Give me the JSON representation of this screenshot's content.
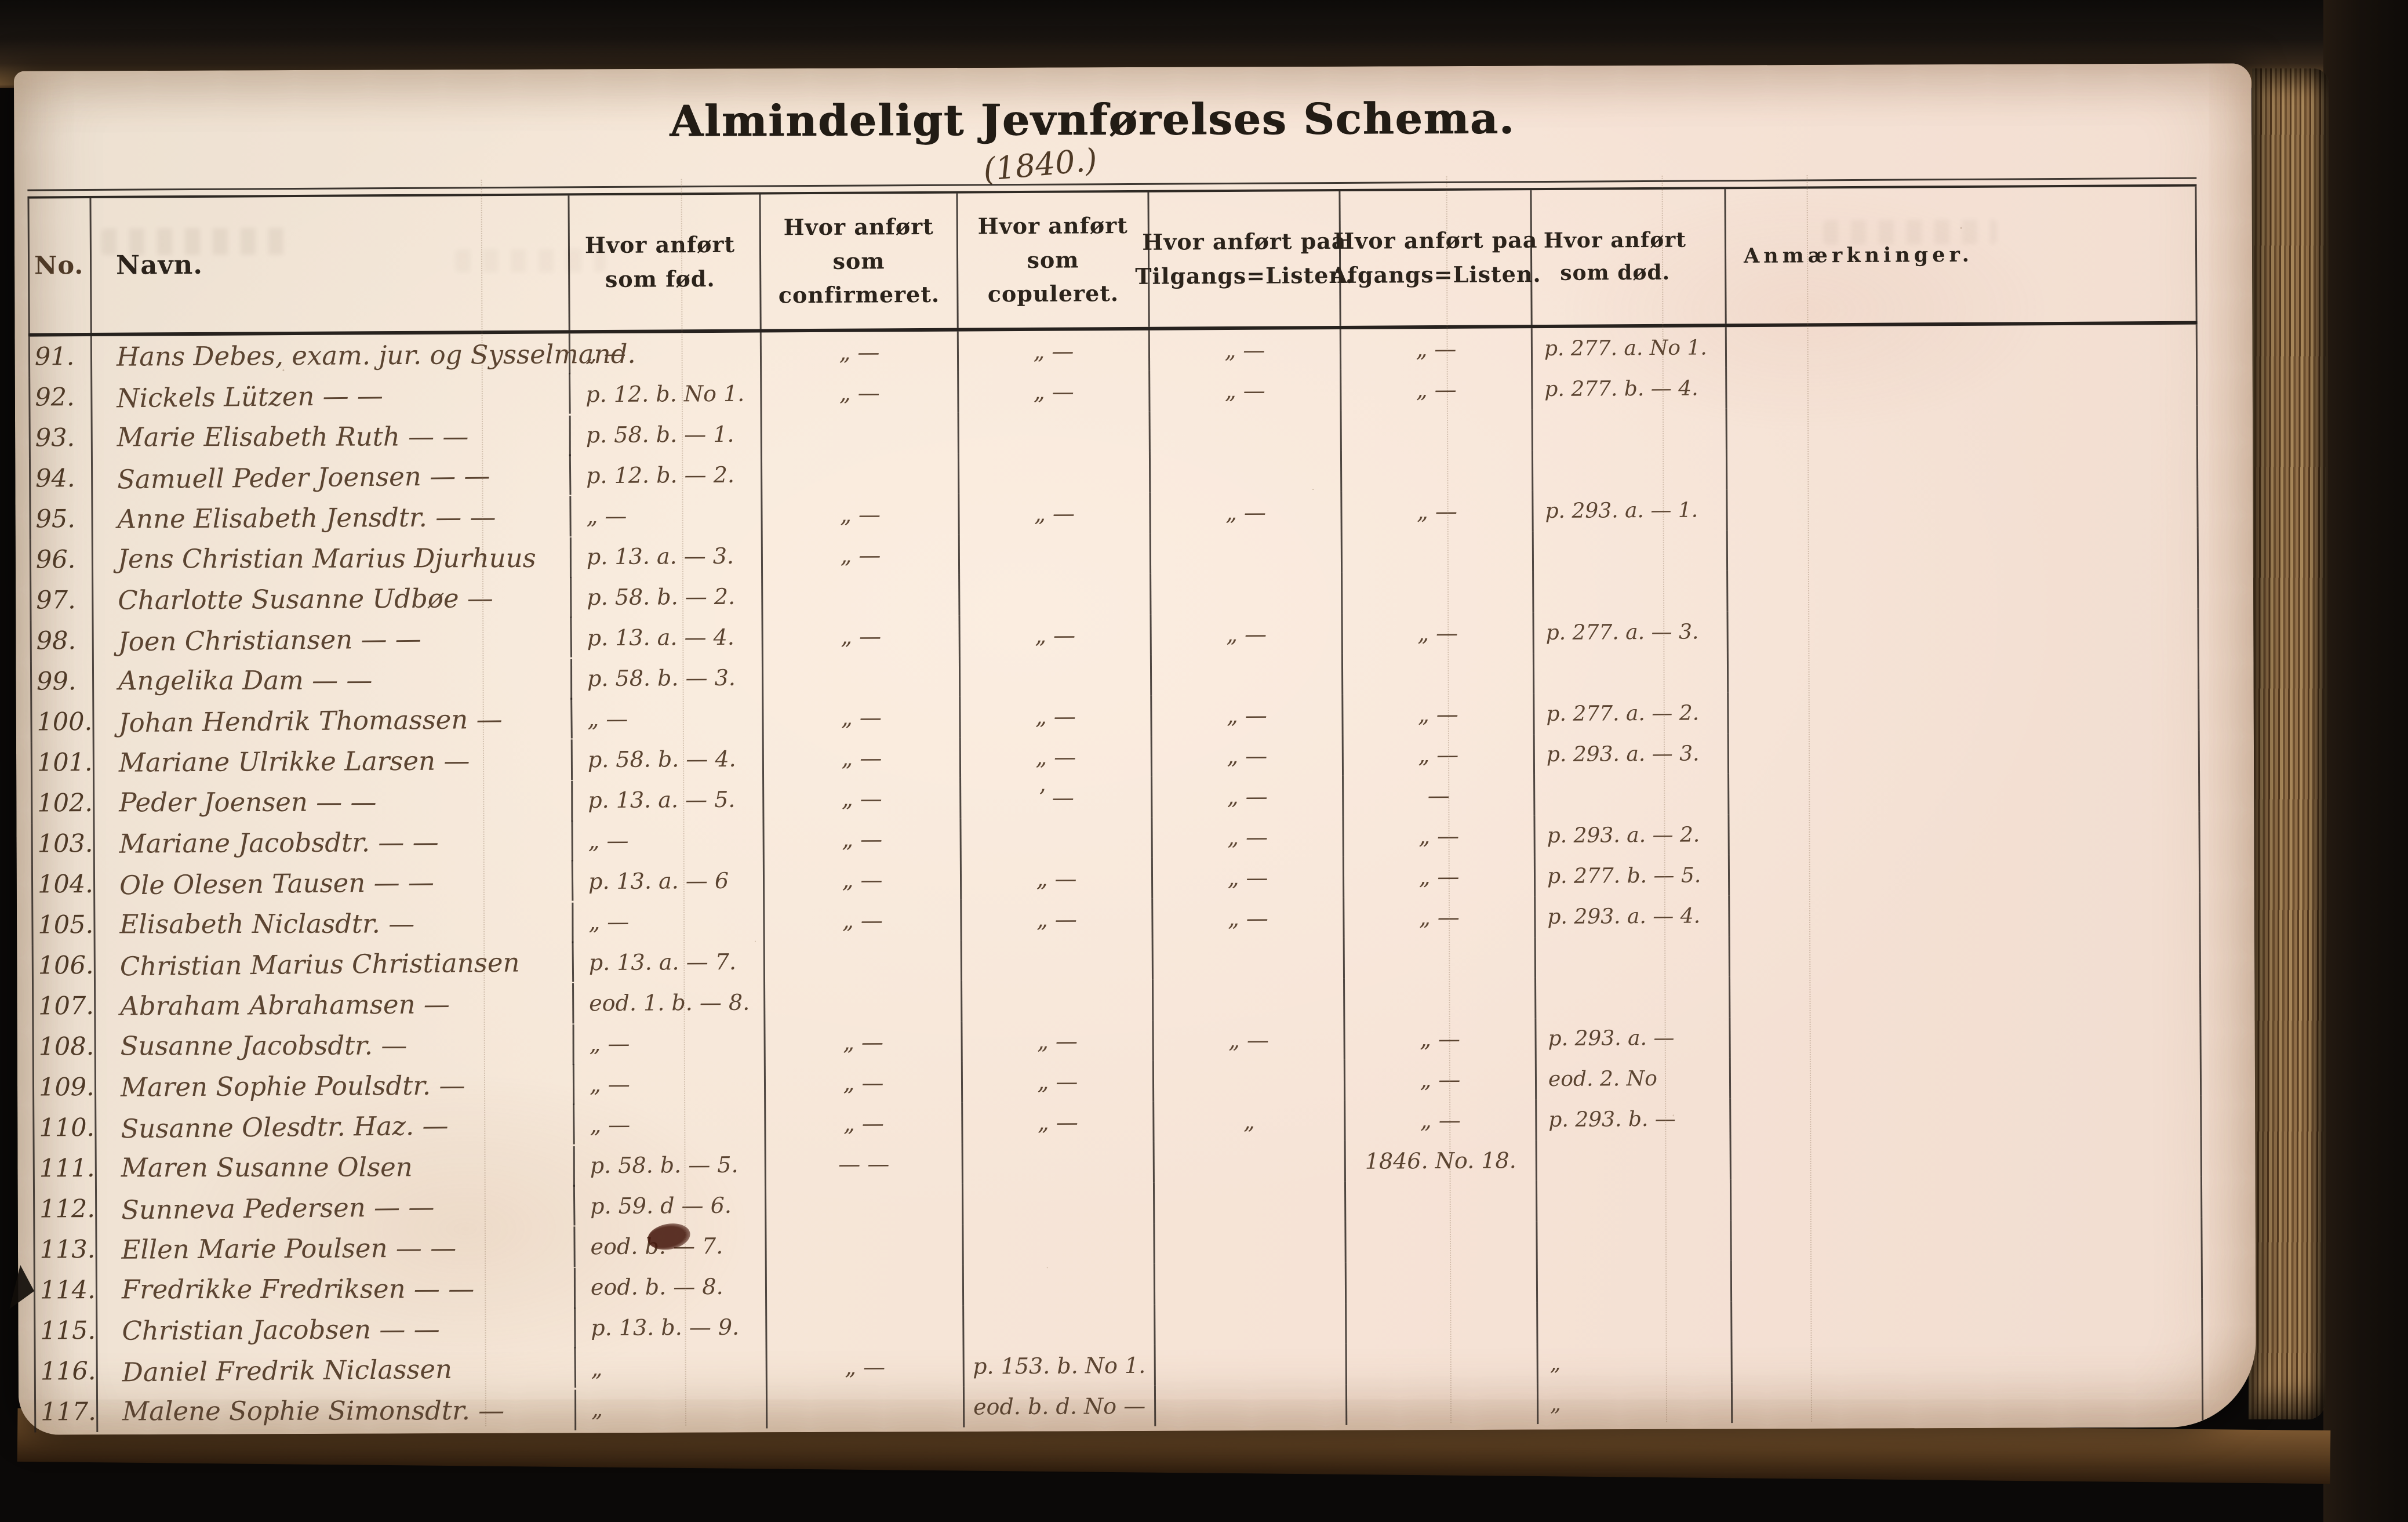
{
  "page": {
    "title": "Almindeligt Jevnførelses Schema.",
    "subtitle": "(1840.)"
  },
  "colors": {
    "paper": "#f4e3d4",
    "handwriting_ink": "#5b4431",
    "printed_ink": "#2b231b",
    "cover": "#17110c",
    "page_edge": "#8a6a44"
  },
  "table": {
    "headers": {
      "no": "No.",
      "navn": "Navn.",
      "fod": "Hvor anført\nsom fød.",
      "conf": "Hvor anført\nsom confirmeret.",
      "cop": "Hvor anført\nsom copuleret.",
      "tilg": "Hvor anført paa\nTilgangs=Listen.",
      "afg": "Hvor anført paa\nAfgangs=Listen.",
      "dod": "Hvor  anført\nsom død.",
      "anm": "Anmærkninger."
    },
    "rows": [
      {
        "no": "91.",
        "navn": "Hans Debes, exam. jur. og Sysselmand.",
        "fod": "„ —",
        "conf": "„ —",
        "cop": "„ —",
        "tilg": "„ —",
        "afg": "„ —",
        "dod": "p. 277. a. No 1.",
        "anm": ""
      },
      {
        "no": "92.",
        "navn": "Nickels Lützen — —",
        "fod": "p. 12. b. No 1.",
        "conf": "„ —",
        "cop": "„ —",
        "tilg": "„ —",
        "afg": "„ —",
        "dod": "p. 277. b. — 4.",
        "anm": ""
      },
      {
        "no": "93.",
        "navn": "Marie Elisabeth Ruth — —",
        "fod": "p. 58. b. — 1.",
        "conf": "",
        "cop": "",
        "tilg": "",
        "afg": "",
        "dod": "",
        "anm": ""
      },
      {
        "no": "94.",
        "navn": "Samuell Peder Joensen — —",
        "fod": "p. 12. b. — 2.",
        "conf": "",
        "cop": "",
        "tilg": "",
        "afg": "",
        "dod": "",
        "anm": ""
      },
      {
        "no": "95.",
        "navn": "Anne Elisabeth Jensdtr. — —",
        "fod": "„ —",
        "conf": "„ —",
        "cop": "„ —",
        "tilg": "„ —",
        "afg": "„ —",
        "dod": "p. 293. a. — 1.",
        "anm": ""
      },
      {
        "no": "96.",
        "navn": "Jens Christian Marius Djurhuus",
        "fod": "p. 13. a. — 3.",
        "conf": "„ —",
        "cop": "",
        "tilg": "",
        "afg": "",
        "dod": "",
        "anm": ""
      },
      {
        "no": "97.",
        "navn": "Charlotte Susanne Udbøe —",
        "fod": "p. 58. b. — 2.",
        "conf": "",
        "cop": "",
        "tilg": "",
        "afg": "",
        "dod": "",
        "anm": ""
      },
      {
        "no": "98.",
        "navn": "Joen Christiansen — —",
        "fod": "p. 13. a. — 4.",
        "conf": "„ —",
        "cop": "„ —",
        "tilg": "„ —",
        "afg": "„ —",
        "dod": "p. 277. a. — 3.",
        "anm": ""
      },
      {
        "no": "99.",
        "navn": "Angelika Dam — —",
        "fod": "p. 58. b. — 3.",
        "conf": "",
        "cop": "",
        "tilg": "",
        "afg": "",
        "dod": "",
        "anm": ""
      },
      {
        "no": "100.",
        "navn": "Johan Hendrik Thomassen —",
        "fod": "„ —",
        "conf": "„ —",
        "cop": "„ —",
        "tilg": "„ —",
        "afg": "„ —",
        "dod": "p. 277. a. — 2.",
        "anm": ""
      },
      {
        "no": "101.",
        "navn": "Mariane Ulrikke Larsen —",
        "fod": "p. 58. b. — 4.",
        "conf": "„ —",
        "cop": "„ —",
        "tilg": "„ —",
        "afg": "„ —",
        "dod": "p. 293. a. — 3.",
        "anm": ""
      },
      {
        "no": "102.",
        "navn": "Peder Joensen — —",
        "fod": "p. 13. a. — 5.",
        "conf": "„ —",
        "cop": "ʼ —",
        "tilg": "„ —",
        "afg": "—",
        "dod": "",
        "anm": ""
      },
      {
        "no": "103.",
        "navn": "Mariane Jacobsdtr. — —",
        "fod": "„ —",
        "conf": "„ —",
        "cop": "",
        "tilg": "„ —",
        "afg": "„ —",
        "dod": "p. 293. a. — 2.",
        "anm": ""
      },
      {
        "no": "104.",
        "navn": "Ole Olesen Tausen — —",
        "fod": "p. 13. a. — 6",
        "conf": "„ —",
        "cop": "„ —",
        "tilg": "„ —",
        "afg": "„ —",
        "dod": "p. 277. b. — 5.",
        "anm": ""
      },
      {
        "no": "105.",
        "navn": "Elisabeth Niclasdtr. —",
        "fod": "„ —",
        "conf": "„ —",
        "cop": "„ —",
        "tilg": "„ —",
        "afg": "„ —",
        "dod": "p. 293. a. — 4.",
        "anm": ""
      },
      {
        "no": "106.",
        "navn": "Christian Marius Christiansen",
        "fod": "p. 13. a. — 7.",
        "conf": "",
        "cop": "",
        "tilg": "",
        "afg": "",
        "dod": "",
        "anm": ""
      },
      {
        "no": "107.",
        "navn": "Abraham Abrahamsen —",
        "fod": "eod. 1. b. — 8.",
        "conf": "",
        "cop": "",
        "tilg": "",
        "afg": "",
        "dod": "",
        "anm": ""
      },
      {
        "no": "108.",
        "navn": "Susanne Jacobsdtr. —",
        "fod": "„ —",
        "conf": "„ —",
        "cop": "„ —",
        "tilg": "„ —",
        "afg": "„ —",
        "dod": "p. 293. a. —",
        "anm": ""
      },
      {
        "no": "109.",
        "navn": "Maren Sophie Poulsdtr. —",
        "fod": "„ —",
        "conf": "„ —",
        "cop": "„ —",
        "tilg": "",
        "afg": "„ —",
        "dod": "eod. 2. No",
        "anm": ""
      },
      {
        "no": "110.",
        "navn": "Susanne Olesdtr. Haz. —",
        "fod": "„ —",
        "conf": "„ —",
        "cop": "„ —",
        "tilg": "„",
        "afg": "„ —",
        "dod": "p. 293. b. —",
        "anm": ""
      },
      {
        "no": "111.",
        "navn": "Maren Susanne Olsen",
        "fod": "p. 58. b. — 5.",
        "conf": "— —",
        "cop": "",
        "tilg": "",
        "afg": "1846. No. 18.",
        "dod": "",
        "anm": ""
      },
      {
        "no": "112.",
        "navn": "Sunneva Pedersen — —",
        "fod": "p. 59. d — 6.",
        "conf": "",
        "cop": "",
        "tilg": "",
        "afg": "",
        "dod": "",
        "anm": ""
      },
      {
        "no": "113.",
        "navn": "Ellen Marie Poulsen — —",
        "fod": "eod. b. — 7.",
        "conf": "",
        "cop": "",
        "tilg": "",
        "afg": "",
        "dod": "",
        "anm": ""
      },
      {
        "no": "114.",
        "navn": "Fredrikke Fredriksen — —",
        "fod": "eod. b. — 8.",
        "conf": "",
        "cop": "",
        "tilg": "",
        "afg": "",
        "dod": "",
        "anm": ""
      },
      {
        "no": "115.",
        "navn": "Christian Jacobsen — —",
        "fod": "p. 13. b. — 9.",
        "conf": "",
        "cop": "",
        "tilg": "",
        "afg": "",
        "dod": "",
        "anm": ""
      },
      {
        "no": "116.",
        "navn": "Daniel Fredrik Niclassen",
        "fod": "„",
        "conf": "„ —",
        "cop": "p. 153. b. No 1.",
        "tilg": "",
        "afg": "",
        "dod": "„",
        "anm": ""
      },
      {
        "no": "117.",
        "navn": "Malene Sophie Simonsdtr. —",
        "fod": "„",
        "conf": "",
        "cop": "eod. b. d. No —",
        "tilg": "",
        "afg": "",
        "dod": "„",
        "anm": ""
      }
    ]
  }
}
